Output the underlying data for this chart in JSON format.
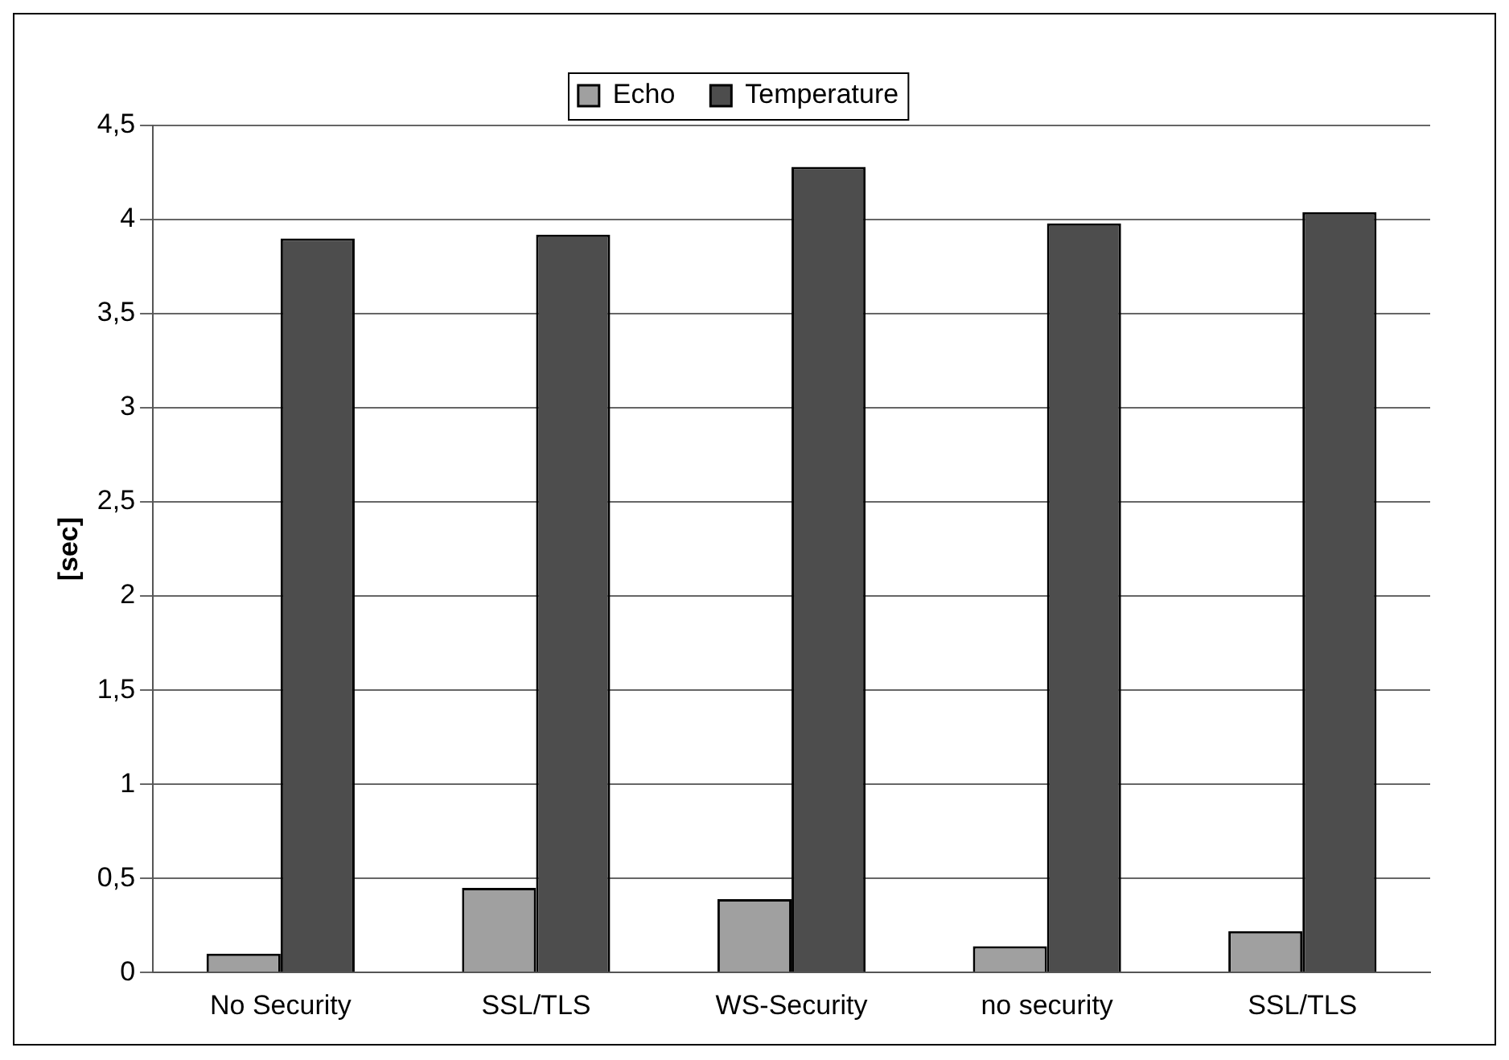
{
  "chart_data": {
    "type": "bar",
    "ylabel": "[sec]",
    "categories": [
      "No Security",
      "SSL/TLS",
      "WS-Security",
      "no security",
      "SSL/TLS"
    ],
    "series": [
      {
        "name": "Echo",
        "color": "#a0a0a0",
        "values": [
          0.1,
          0.45,
          0.39,
          0.14,
          0.22
        ]
      },
      {
        "name": "Temperature",
        "color": "#4d4d4d",
        "values": [
          3.9,
          3.92,
          4.28,
          3.98,
          4.04
        ]
      }
    ],
    "ylim": [
      0,
      4.5
    ],
    "yticks": [
      0,
      {
        "value": 0.5,
        "label": "0,5"
      },
      1,
      {
        "value": 1.5,
        "label": "1,5"
      },
      2,
      {
        "value": 2.5,
        "label": "2,5"
      },
      3,
      {
        "value": 3.5,
        "label": "3,5"
      },
      4,
      {
        "value": 4.5,
        "label": "4,5"
      }
    ],
    "grid": "y",
    "legend": "top"
  }
}
